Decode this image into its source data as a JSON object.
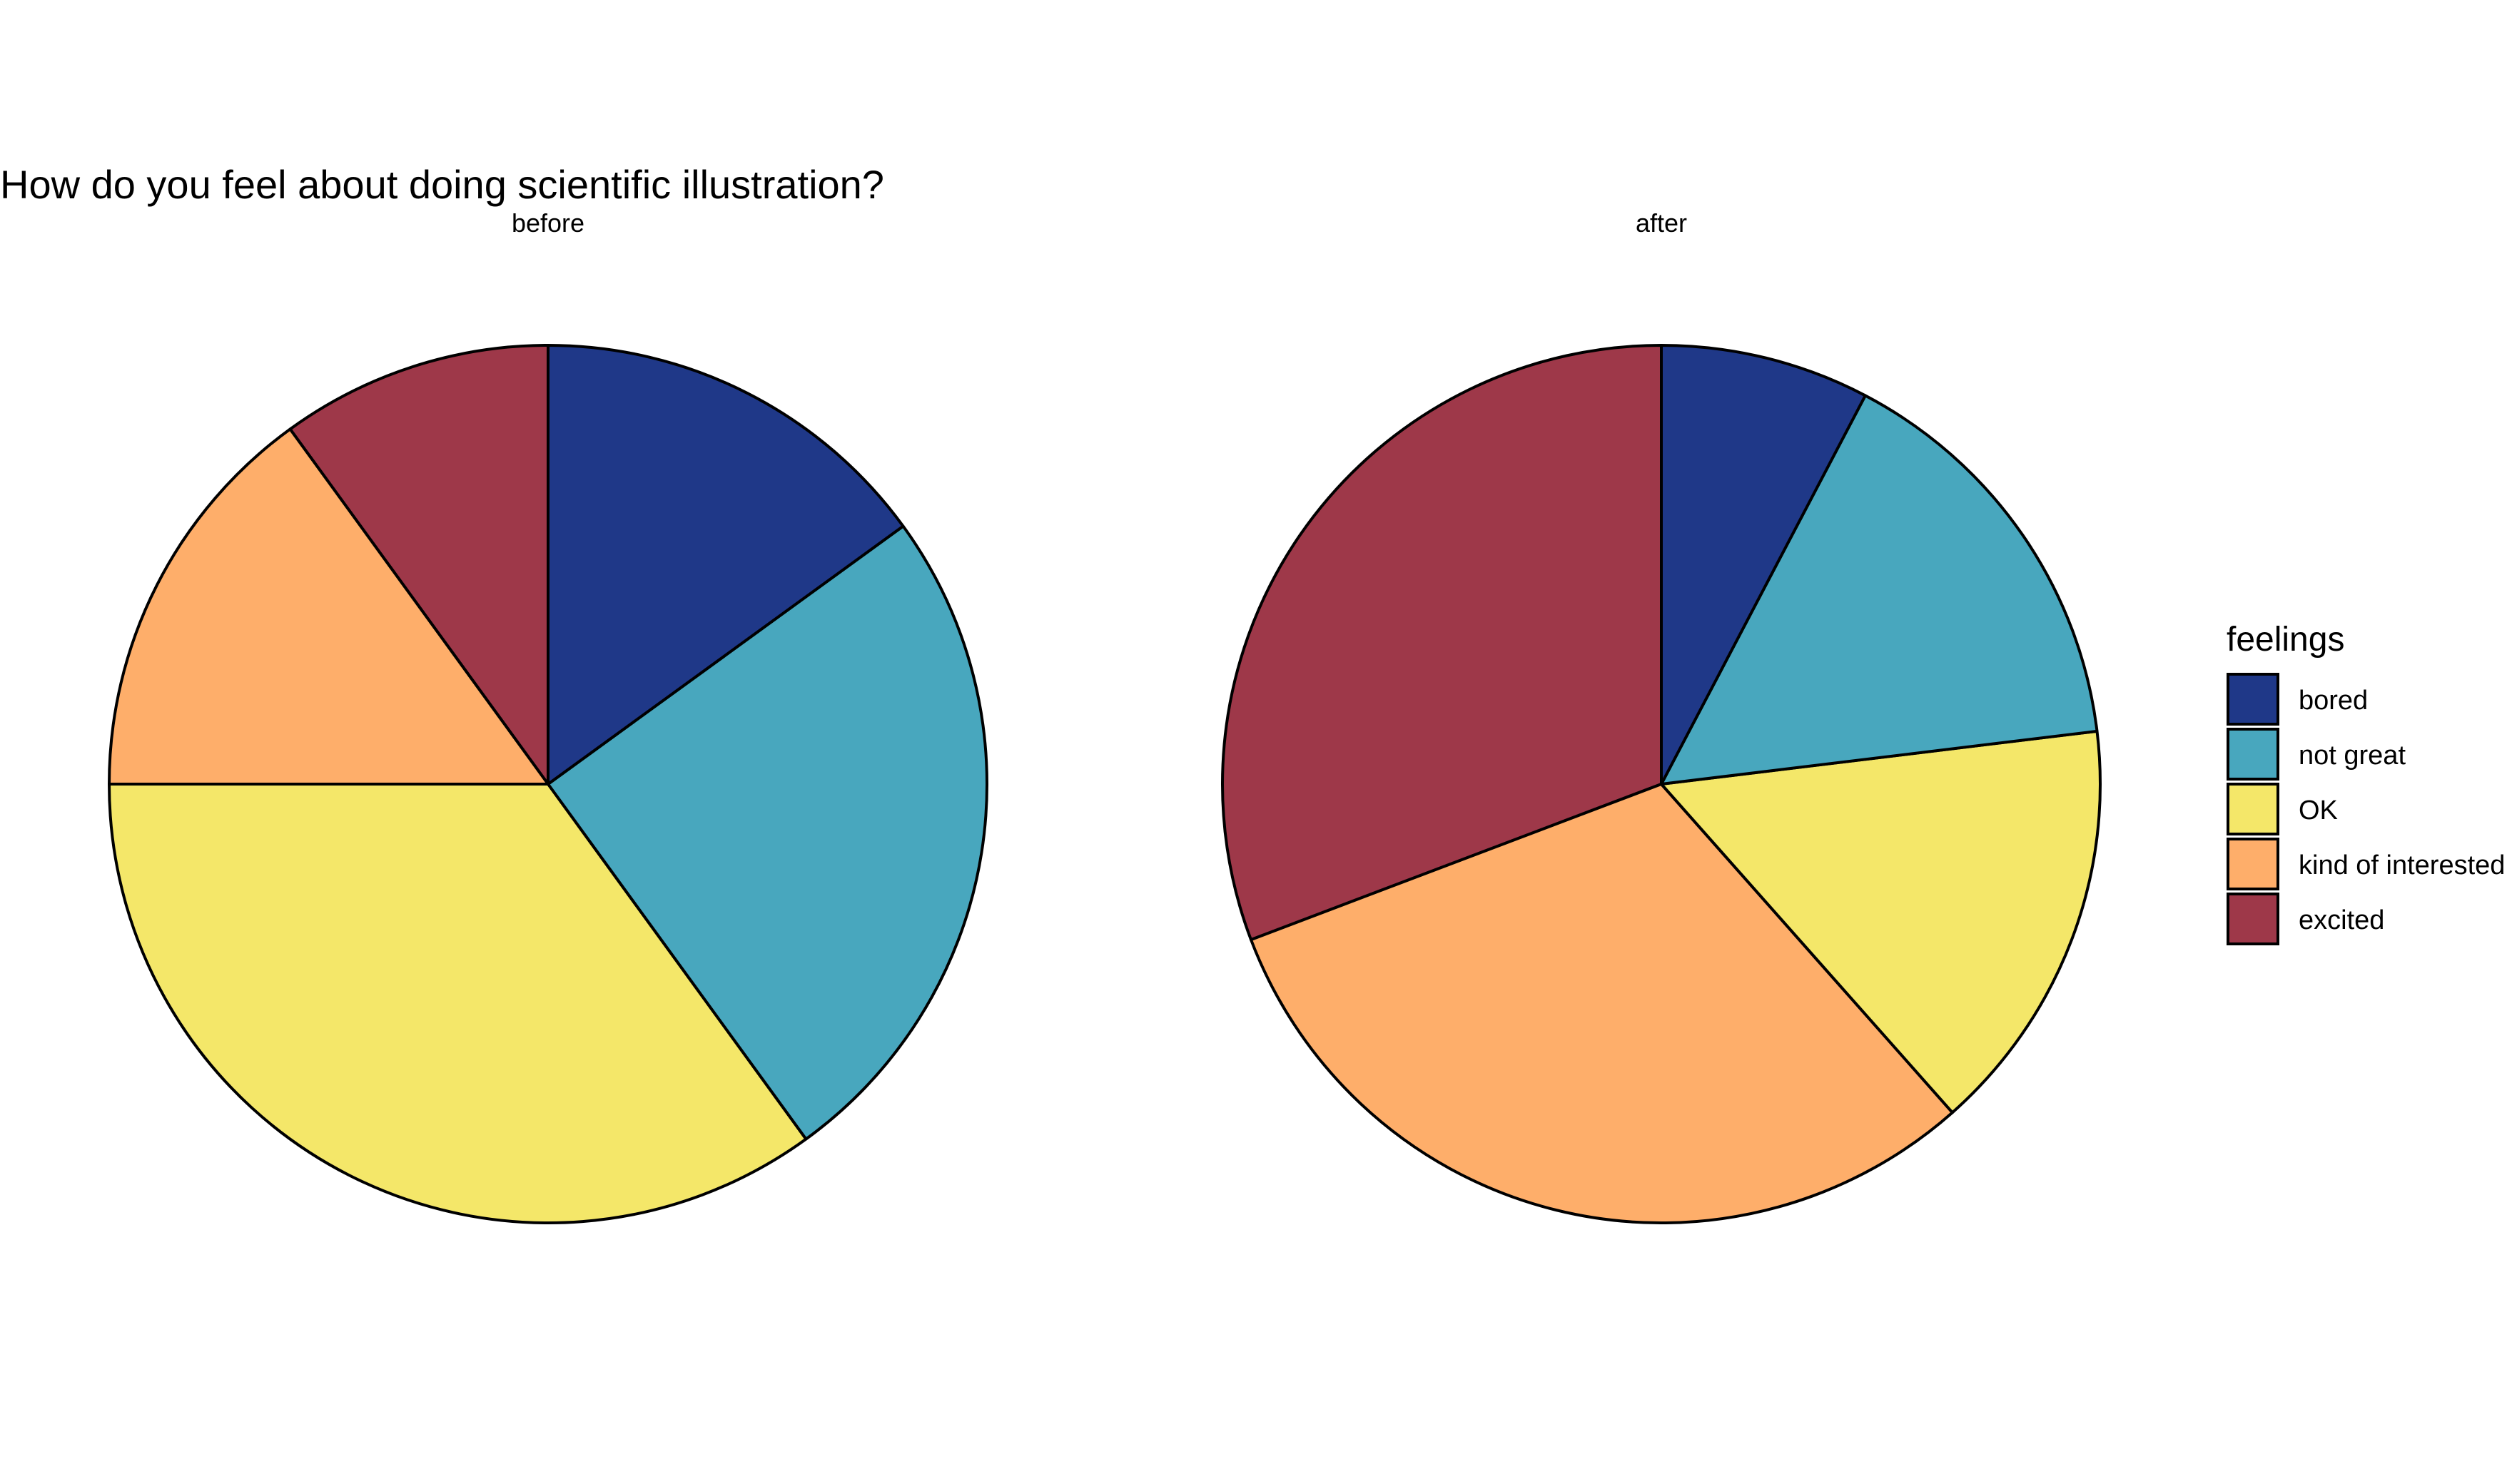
{
  "chart_data": {
    "type": "pie",
    "title": "How do you feel about doing scientific illustration?",
    "categories": [
      "bored",
      "not great",
      "OK",
      "kind of interested",
      "excited"
    ],
    "colors": {
      "bored": "#1F3888",
      "not great": "#48A7BE",
      "OK": "#F4E769",
      "kind of interested": "#FEAE6A",
      "excited": "#9E3849"
    },
    "outline_color": "#000000",
    "facets": [
      {
        "label": "before",
        "values": [
          3,
          5,
          7,
          3,
          2
        ]
      },
      {
        "label": "after",
        "values": [
          1,
          2,
          2,
          4,
          4
        ]
      }
    ],
    "legend": {
      "title": "feelings",
      "placement": "right"
    }
  }
}
